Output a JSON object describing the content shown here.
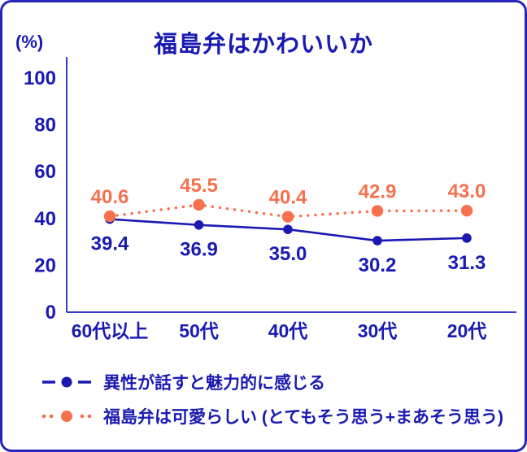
{
  "title": "福島弁はかわいいか",
  "y_axis_unit": "(%)",
  "colors": {
    "navy_text": "#1A1AB2",
    "axis_line": "#3A3AC2",
    "card_border": "#2525B8",
    "series_blue": "#1A1AB2",
    "series_orange": "#F7704E",
    "background": "#FFFFFF"
  },
  "chart_data": {
    "type": "line",
    "title": "福島弁はかわいいか",
    "ylabel": "(%)",
    "categories": [
      "60代以上",
      "50代",
      "40代",
      "30代",
      "20代"
    ],
    "series": [
      {
        "name": "異性が話すと魅力的に感じる",
        "values": [
          39.4,
          36.9,
          35.0,
          30.2,
          31.3
        ],
        "labels": [
          "39.4",
          "36.9",
          "35.0",
          "30.2",
          "31.3"
        ],
        "color": "#1A1AB2",
        "line_style": "solid",
        "marker": "circle",
        "label_position": "below"
      },
      {
        "name": "福島弁は可愛らしい (とてもそう思う+まあそう思う)",
        "values": [
          40.6,
          45.5,
          40.4,
          42.9,
          43.0
        ],
        "labels": [
          "40.6",
          "45.5",
          "40.4",
          "42.9",
          "43.0"
        ],
        "color": "#F7704E",
        "line_style": "dotted",
        "marker": "circle",
        "label_position": "above"
      }
    ],
    "ylim": [
      0,
      100
    ],
    "yticks": [
      0,
      20,
      40,
      60,
      80,
      100
    ],
    "ytick_labels": [
      "0",
      "20",
      "40",
      "60",
      "80",
      "100"
    ],
    "grid": false,
    "legend_position": "bottom"
  }
}
